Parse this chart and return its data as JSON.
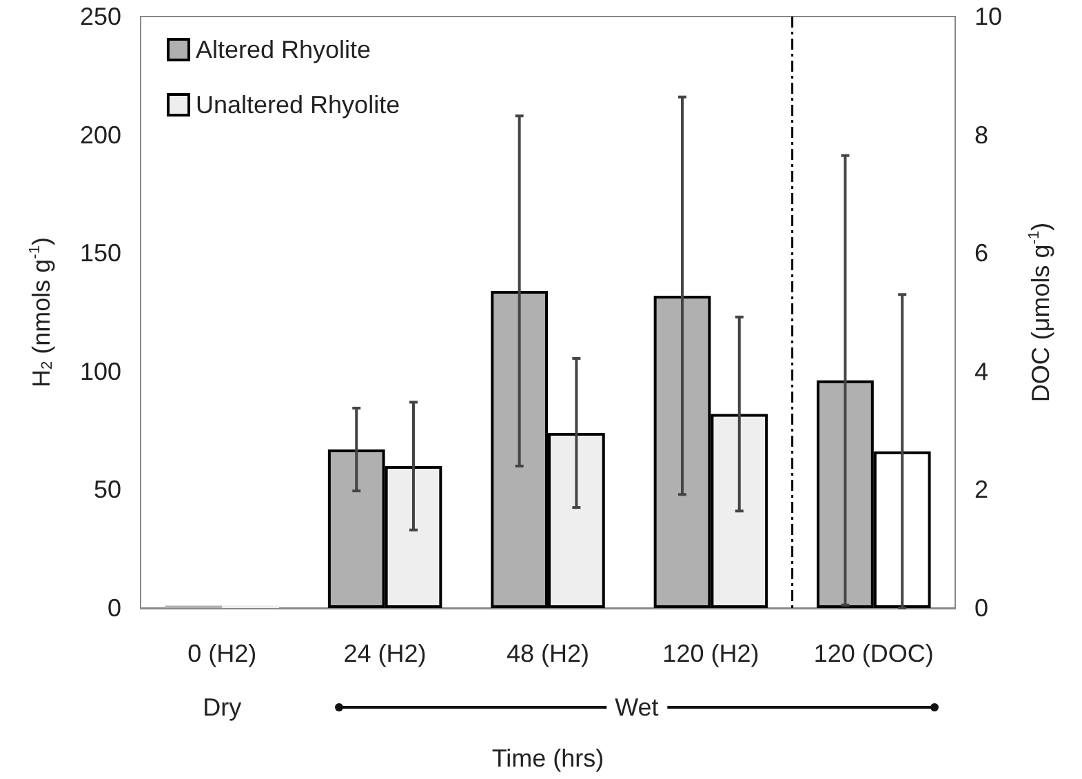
{
  "chart_data": {
    "type": "bar",
    "xlabel": "Time (hrs)",
    "ylabel": "H$_{2}$ (nmols g$^{-1}$)",
    "y2label": "DOC (μmols g$^{-1}$)",
    "categories": [
      "0 (H2)",
      "24 (H2)",
      "48 (H2)",
      "120 (H2)",
      "120 (DOC)"
    ],
    "series": [
      {
        "name": "Altered Rhyolite",
        "color": "#b0b0b0",
        "values": [
          1,
          67,
          134,
          132,
          null
        ],
        "errors": [
          null,
          17.5,
          74,
          84,
          null
        ]
      },
      {
        "name": "Unaltered Rhyolite",
        "color": "#eeeeee",
        "values": [
          1,
          60,
          74,
          82,
          null
        ],
        "errors": [
          null,
          27,
          31.5,
          41,
          null
        ]
      },
      {
        "color": "#b0b0b0",
        "axis": "y2",
        "values": [
          null,
          null,
          null,
          null,
          3.85
        ],
        "errors": [
          null,
          null,
          null,
          null,
          3.8
        ]
      },
      {
        "color": "#ffffff",
        "axis": "y2",
        "values": [
          null,
          null,
          null,
          null,
          2.65
        ],
        "errors": [
          null,
          null,
          null,
          null,
          2.65
        ]
      }
    ],
    "ylim": [
      0,
      250
    ],
    "yticks": [
      0,
      50,
      100,
      150,
      200,
      250
    ],
    "y2lim": [
      0,
      10
    ],
    "y2ticks": [
      0,
      2,
      4,
      6,
      8,
      10
    ],
    "annotations": [
      "Dry",
      "Wet"
    ],
    "legend": "top left"
  }
}
